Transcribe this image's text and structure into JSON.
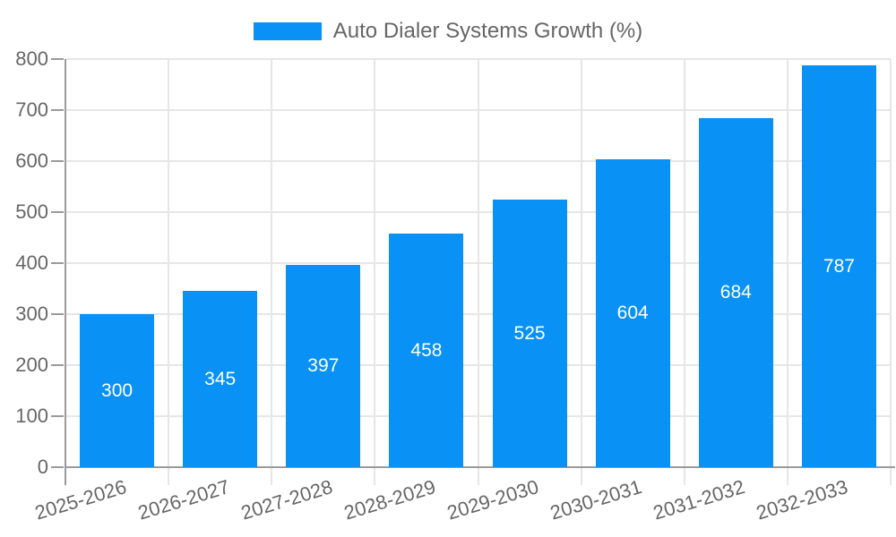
{
  "chart_data": {
    "type": "bar",
    "title": "Auto Dialer Systems Growth (%)",
    "series": [
      {
        "name": "Auto Dialer Systems Growth (%)",
        "values": [
          300,
          345,
          397,
          458,
          525,
          604,
          684,
          787
        ]
      }
    ],
    "categories": [
      "2025-2026",
      "2026-2027",
      "2027-2028",
      "2028-2029",
      "2029-2030",
      "2030-2031",
      "2031-2032",
      "2032-2033"
    ],
    "value_labels": [
      "300",
      "345",
      "397",
      "458",
      "525",
      "604",
      "684",
      "787"
    ],
    "yticks": [
      0,
      100,
      200,
      300,
      400,
      500,
      600,
      700,
      800
    ],
    "ylim": [
      0,
      800
    ],
    "xlabel": "",
    "ylabel": "",
    "grid": true,
    "legend_position": "top-center",
    "value_label_position": "inside-center",
    "xtick_rotation_deg": -17,
    "colors": {
      "bar": "#0991f5",
      "grid": "#e6e6e6",
      "axis": "#9a9a9a",
      "tick_text": "#666666",
      "legend_text": "#666666",
      "value_label_text": "#ffffff",
      "background": "#ffffff"
    }
  }
}
